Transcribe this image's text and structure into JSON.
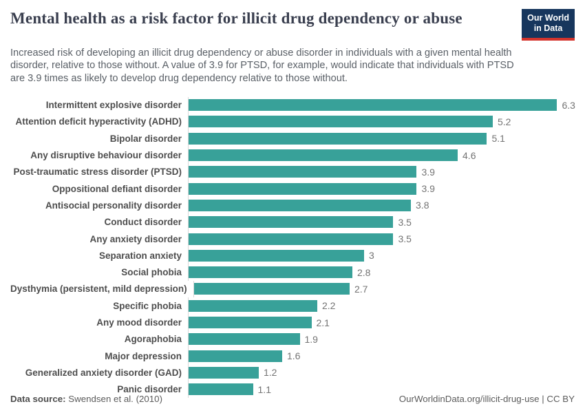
{
  "title": "Mental health as a risk factor for illicit drug dependency or abuse",
  "subtitle": "Increased risk of developing an illicit drug dependency or abuse disorder in individuals with a given mental health disorder, relative to those without. A value of 3.9 for PTSD, for example, would indicate that individuals with PTSD are 3.9 times as likely to develop drug dependency relative to those without.",
  "logo": {
    "line1": "Our World",
    "line2": "in Data"
  },
  "footer": {
    "datasource_label": "Data source:",
    "datasource_value": " Swendsen et al. (2010)",
    "right": "OurWorldinData.org/illicit-drug-use | CC BY"
  },
  "colors": {
    "bar": "#38a199",
    "axis_line": "#d9d9d9",
    "title_text": "#3a3f4f",
    "subtitle_text": "#595f66",
    "category_text": "#4d4d4d",
    "value_text": "#737373",
    "logo_background": "#17365d",
    "logo_stripe": "#d4342c"
  },
  "chart_data": {
    "type": "bar",
    "orientation": "horizontal",
    "title": "Mental health as a risk factor for illicit drug dependency or abuse",
    "xlabel": "",
    "ylabel": "",
    "xlim": [
      0,
      6.6
    ],
    "grid": false,
    "legend": "none",
    "bar_color": "#38a199",
    "categories": [
      "Intermittent explosive disorder",
      "Attention deficit hyperactivity (ADHD)",
      "Bipolar disorder",
      "Any disruptive behaviour disorder",
      "Post-traumatic stress disorder (PTSD)",
      "Oppositional defiant disorder",
      "Antisocial personality disorder",
      "Conduct disorder",
      "Any anxiety disorder",
      "Separation anxiety",
      "Social phobia",
      "Dysthymia (persistent, mild depression)",
      "Specific phobia",
      "Any mood disorder",
      "Agoraphobia",
      "Major depression",
      "Generalized anxiety disorder (GAD)",
      "Panic disorder"
    ],
    "values": [
      6.3,
      5.2,
      5.1,
      4.6,
      3.9,
      3.9,
      3.8,
      3.5,
      3.5,
      3,
      2.8,
      2.7,
      2.2,
      2.1,
      1.9,
      1.6,
      1.2,
      1.1
    ],
    "value_labels": [
      "6.3",
      "5.2",
      "5.1",
      "4.6",
      "3.9",
      "3.9",
      "3.8",
      "3.5",
      "3.5",
      "3",
      "2.8",
      "2.7",
      "2.2",
      "2.1",
      "1.9",
      "1.6",
      "1.2",
      "1.1"
    ]
  }
}
